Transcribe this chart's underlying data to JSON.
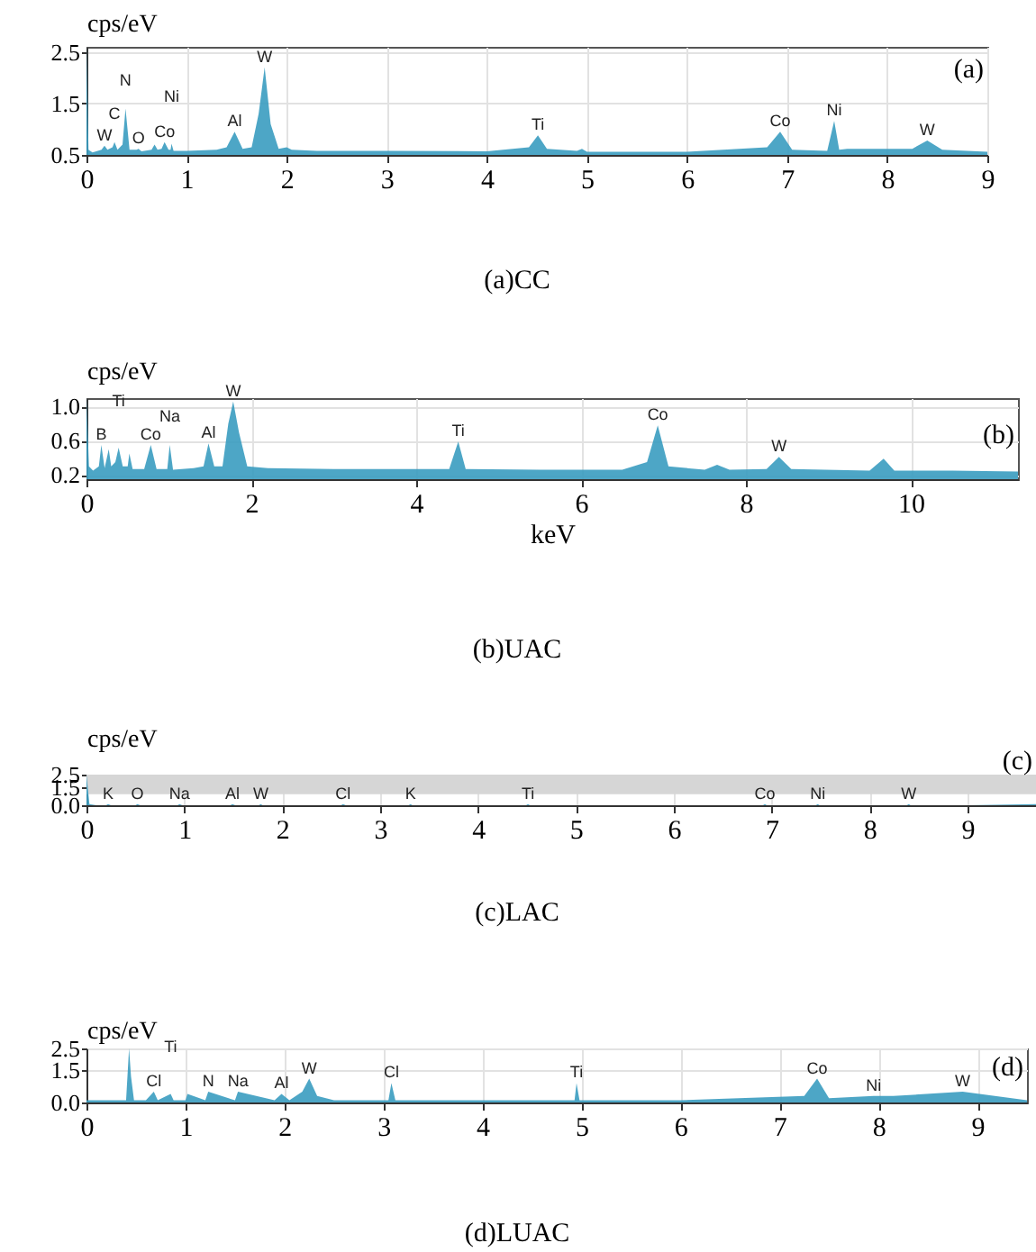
{
  "chart_data": [
    {
      "type": "area",
      "title": "(a)CC",
      "ylabel": "cps/eV",
      "xlim": [
        0,
        9
      ],
      "xticks": [
        0,
        1,
        2,
        3,
        4,
        5,
        6,
        7,
        8,
        9
      ],
      "ylim": [
        0.5,
        2.6
      ],
      "yticks": [
        {
          "value": 0.5,
          "label": "0.5"
        },
        {
          "value": 1.5,
          "label": "1.5"
        },
        {
          "value": 2.5,
          "label": "2.5"
        }
      ],
      "grid": true,
      "x": [
        0,
        0.02,
        0.06,
        0.15,
        0.18,
        0.21,
        0.26,
        0.28,
        0.31,
        0.36,
        0.39,
        0.43,
        0.5,
        0.52,
        0.55,
        0.65,
        0.68,
        0.71,
        0.75,
        0.78,
        0.82,
        0.84,
        0.85,
        0.87,
        1.0,
        1.3,
        1.4,
        1.48,
        1.56,
        1.65,
        1.72,
        1.78,
        1.84,
        1.92,
        2.0,
        2.05,
        2.3,
        3.0,
        4.0,
        4.42,
        4.51,
        4.6,
        4.9,
        4.95,
        5.0,
        6.0,
        6.8,
        6.93,
        7.05,
        7.4,
        7.47,
        7.52,
        7.6,
        8.25,
        8.4,
        8.55,
        9.0
      ],
      "series": [
        {
          "color": "#3a9cc0",
          "values": [
            2.6,
            0.6,
            0.55,
            0.6,
            0.68,
            0.6,
            0.65,
            0.75,
            0.6,
            0.7,
            1.4,
            0.6,
            0.6,
            0.62,
            0.57,
            0.6,
            0.7,
            0.6,
            0.62,
            0.75,
            0.6,
            0.6,
            0.72,
            0.58,
            0.58,
            0.6,
            0.65,
            0.95,
            0.62,
            0.65,
            1.3,
            2.2,
            1.1,
            0.62,
            0.65,
            0.6,
            0.58,
            0.58,
            0.57,
            0.65,
            0.88,
            0.62,
            0.58,
            0.62,
            0.56,
            0.56,
            0.65,
            0.95,
            0.6,
            0.58,
            1.16,
            0.6,
            0.62,
            0.62,
            0.78,
            0.6,
            0.56
          ]
        }
      ],
      "annotations": [
        "(a)",
        {
          "text": "W",
          "x": 0.18,
          "y": 0.68
        },
        {
          "text": "C",
          "x": 0.28,
          "y": 0.75
        },
        {
          "text": "N",
          "x": 0.39,
          "y": 1.4
        },
        {
          "text": "O",
          "x": 0.52,
          "y": 0.62
        },
        {
          "text": "Co",
          "x": 0.78,
          "y": 0.75
        },
        {
          "text": "Ni",
          "x": 0.85,
          "y": 0.72
        },
        {
          "text": "Al",
          "x": 1.48,
          "y": 0.95
        },
        {
          "text": "W",
          "x": 1.78,
          "y": 2.2
        },
        {
          "text": "Ti",
          "x": 4.51,
          "y": 0.88
        },
        {
          "text": "Co",
          "x": 6.93,
          "y": 0.95
        },
        {
          "text": "Ni",
          "x": 7.47,
          "y": 1.16
        },
        {
          "text": "W",
          "x": 8.4,
          "y": 0.78
        }
      ]
    },
    {
      "type": "area",
      "title": "(b)UAC",
      "ylabel": "cps/eV",
      "xlabel": "keV",
      "xlim": [
        0,
        11.3
      ],
      "xticks": [
        0,
        2,
        4,
        6,
        8,
        10
      ],
      "ylim": [
        0.15,
        1.1
      ],
      "yticks": [
        {
          "value": 0.2,
          "label": "0.2"
        },
        {
          "value": 0.6,
          "label": "0.6"
        },
        {
          "value": 1,
          "label": "1.0"
        }
      ],
      "grid": true,
      "x": [
        0,
        0.03,
        0.08,
        0.15,
        0.18,
        0.22,
        0.27,
        0.3,
        0.35,
        0.39,
        0.44,
        0.5,
        0.52,
        0.56,
        0.7,
        0.78,
        0.85,
        0.98,
        1.01,
        1.05,
        1.3,
        1.42,
        1.48,
        1.55,
        1.65,
        1.72,
        1.78,
        1.85,
        1.95,
        2.2,
        3,
        4.4,
        4.51,
        4.6,
        5.5,
        6.5,
        6.8,
        6.93,
        7.06,
        7.5,
        7.65,
        7.8,
        8.25,
        8.4,
        8.55,
        9.5,
        9.67,
        9.8,
        10.5,
        11.3
      ],
      "series": [
        {
          "color": "#3a9cc0",
          "values": [
            1.1,
            0.3,
            0.25,
            0.3,
            0.55,
            0.28,
            0.5,
            0.3,
            0.35,
            0.52,
            0.3,
            0.3,
            0.45,
            0.27,
            0.27,
            0.55,
            0.27,
            0.27,
            0.55,
            0.26,
            0.28,
            0.3,
            0.57,
            0.3,
            0.3,
            0.8,
            1.06,
            0.7,
            0.3,
            0.28,
            0.27,
            0.27,
            0.59,
            0.27,
            0.26,
            0.26,
            0.35,
            0.78,
            0.3,
            0.26,
            0.32,
            0.26,
            0.27,
            0.41,
            0.27,
            0.25,
            0.39,
            0.25,
            0.25,
            0.24
          ]
        }
      ],
      "annotations": [
        "(b)",
        {
          "text": "B",
          "x": 0.18,
          "y": 0.55
        },
        {
          "text": "Ti",
          "x": 0.39,
          "y": 0.52
        },
        {
          "text": "Co",
          "x": 0.78,
          "y": 0.55
        },
        {
          "text": "Na",
          "x": 1.01,
          "y": 0.55
        },
        {
          "text": "Al",
          "x": 1.48,
          "y": 0.57
        },
        {
          "text": "W",
          "x": 1.78,
          "y": 1.06
        },
        {
          "text": "Ti",
          "x": 4.51,
          "y": 0.59
        },
        {
          "text": "Co",
          "x": 6.93,
          "y": 0.78
        },
        {
          "text": "W",
          "x": 8.4,
          "y": 0.41
        }
      ]
    },
    {
      "type": "area",
      "title": "(c)LAC",
      "ylabel": "cps/eV",
      "xlim": [
        0,
        9.7
      ],
      "xticks": [
        0,
        1,
        2,
        3,
        4,
        5,
        6,
        7,
        8,
        9
      ],
      "ylim": [
        0,
        2.5
      ],
      "yticks": [
        {
          "value": 0,
          "label": "0.0"
        },
        {
          "value": 1.5,
          "label": "1.5"
        },
        {
          "value": 2.5,
          "label": "2.5"
        }
      ],
      "grid": true,
      "bands": [
        {
          "axis": "y",
          "from": 0.9,
          "to": 2.5,
          "color": "#d6d6d6"
        }
      ],
      "x": [
        0,
        0.03,
        0.1,
        0.2,
        0.22,
        0.25,
        0.5,
        0.52,
        0.55,
        0.93,
        0.95,
        0.98,
        1.47,
        1.49,
        1.52,
        1.76,
        1.78,
        1.8,
        2.6,
        2.62,
        2.65,
        3.29,
        3.31,
        3.33,
        4.49,
        4.51,
        4.53,
        6.91,
        6.93,
        6.95,
        7.45,
        7.47,
        7.49,
        8.38,
        8.4,
        8.42,
        9.0,
        9.7
      ],
      "series": [
        {
          "color": "#3a9cc0",
          "values": [
            2.5,
            0.1,
            0,
            0,
            0.1,
            0,
            0,
            0.1,
            0,
            0,
            0.1,
            0,
            0,
            0.1,
            0,
            0,
            0.1,
            0,
            0,
            0.1,
            0,
            0,
            0.1,
            0,
            0,
            0.1,
            0,
            0,
            0.1,
            0,
            0,
            0.1,
            0,
            0,
            0.1,
            0,
            0,
            0.1
          ]
        }
      ],
      "annotations": [
        "(c)",
        {
          "text": "K",
          "x": 0.22,
          "y": 0.1
        },
        {
          "text": "O",
          "x": 0.52,
          "y": 0.1
        },
        {
          "text": "Na",
          "x": 0.95,
          "y": 0.1
        },
        {
          "text": "Al",
          "x": 1.49,
          "y": 0.1
        },
        {
          "text": "W",
          "x": 1.78,
          "y": 0.1
        },
        {
          "text": "Cl",
          "x": 2.62,
          "y": 0.1
        },
        {
          "text": "K",
          "x": 3.31,
          "y": 0.1
        },
        {
          "text": "Ti",
          "x": 4.51,
          "y": 0.1
        },
        {
          "text": "Co",
          "x": 6.93,
          "y": 0.1
        },
        {
          "text": "Ni",
          "x": 7.47,
          "y": 0.1
        },
        {
          "text": "W",
          "x": 8.4,
          "y": 0.1
        }
      ]
    },
    {
      "type": "area",
      "title": "(d)LUAC",
      "ylabel": "cps/eV",
      "xlim": [
        0,
        9.5
      ],
      "xticks": [
        0,
        1,
        2,
        3,
        4,
        5,
        6,
        7,
        8,
        9
      ],
      "ylim": [
        0,
        2.5
      ],
      "yticks": [
        {
          "value": 0,
          "label": "0.0"
        },
        {
          "value": 1.5,
          "label": "1.5"
        },
        {
          "value": 2.5,
          "label": "2.5"
        }
      ],
      "grid": true,
      "x": [
        0,
        0.4,
        0.43,
        0.45,
        0.48,
        0.6,
        0.68,
        0.72,
        0.85,
        0.88,
        1.0,
        1.02,
        1.2,
        1.23,
        1.5,
        1.53,
        1.9,
        1.97,
        2.05,
        2.18,
        2.25,
        2.33,
        2.5,
        3.05,
        3.08,
        3.12,
        4.0,
        4.93,
        4.95,
        4.98,
        6.0,
        7.25,
        7.38,
        7.5,
        7.95,
        8.15,
        8.85,
        9.5
      ],
      "series": [
        {
          "color": "#3a9cc0",
          "values": [
            0.1,
            0.1,
            2.5,
            1.2,
            0.1,
            0.1,
            0.5,
            0.1,
            0.4,
            0.1,
            0.1,
            0.4,
            0.1,
            0.5,
            0.1,
            0.5,
            0.1,
            0.4,
            0.1,
            0.5,
            1.1,
            0.3,
            0.1,
            0.1,
            0.9,
            0.1,
            0.1,
            0.1,
            0.9,
            0.1,
            0.1,
            0.3,
            1.1,
            0.2,
            0.3,
            0.3,
            0.5,
            0.1
          ]
        }
      ],
      "annotations": [
        "(d)",
        {
          "text": "Cl",
          "x": 0.68,
          "y": 0.5
        },
        {
          "text": "Ti",
          "x": 0.85,
          "y": 0.4
        },
        {
          "text": "N",
          "x": 1.23,
          "y": 0.5
        },
        {
          "text": "Na",
          "x": 1.53,
          "y": 0.5
        },
        {
          "text": "Al",
          "x": 1.97,
          "y": 0.4
        },
        {
          "text": "W",
          "x": 2.25,
          "y": 1.1
        },
        {
          "text": "Cl",
          "x": 3.08,
          "y": 0.9
        },
        {
          "text": "Ti",
          "x": 4.95,
          "y": 0.9
        },
        {
          "text": "Co",
          "x": 7.38,
          "y": 1.1
        },
        {
          "text": "Ni",
          "x": 7.95,
          "y": 0.3
        },
        {
          "text": "W",
          "x": 8.85,
          "y": 0.5
        }
      ]
    }
  ]
}
